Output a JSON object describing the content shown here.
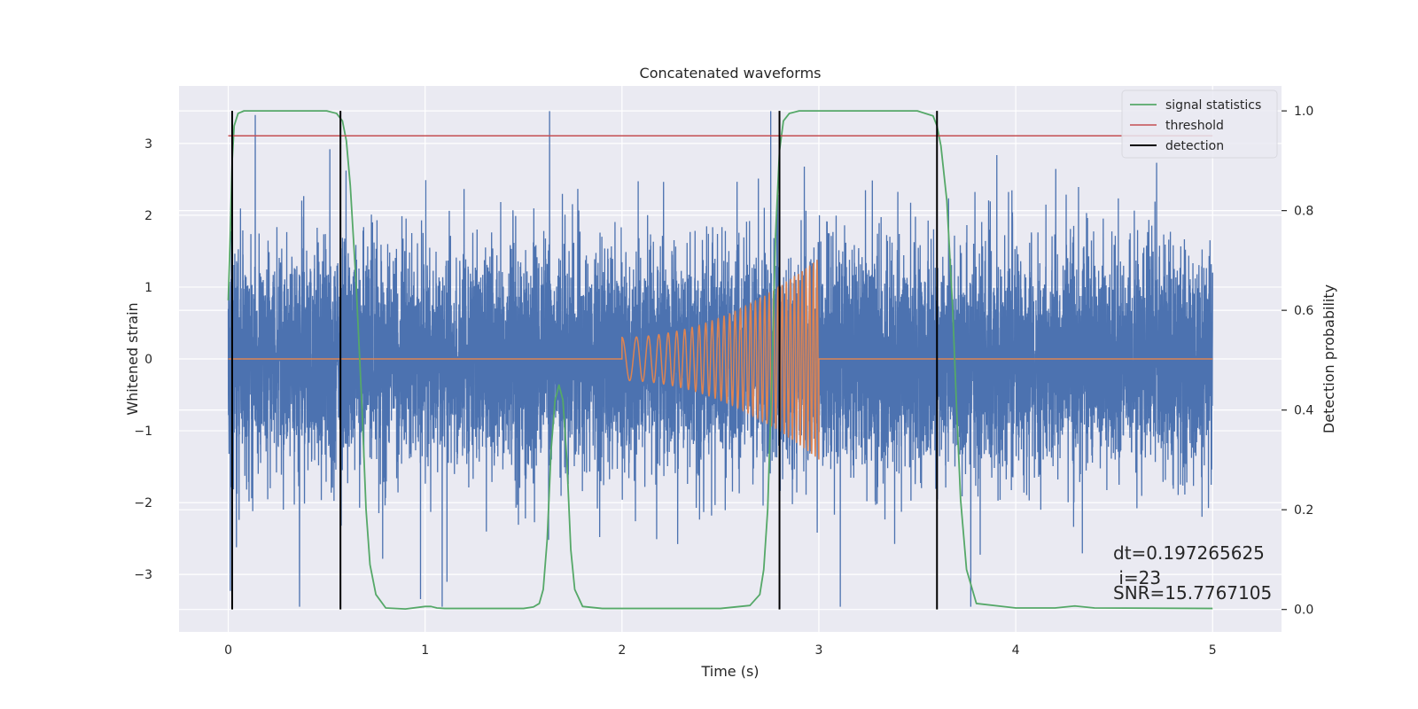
{
  "chart_data": {
    "type": "line",
    "title": "Concatenated waveforms",
    "xlabel": "Time (s)",
    "ylabel": "Whitened strain",
    "y2label": "Detection probability",
    "xlim": [
      -0.25,
      5.35
    ],
    "ylim": [
      -3.8,
      3.8
    ],
    "y2lim": [
      -0.045,
      1.05
    ],
    "xticks": [
      0,
      1,
      2,
      3,
      4,
      5
    ],
    "yticks": [
      -3,
      -2,
      -1,
      0,
      1,
      2,
      3
    ],
    "y2ticks": [
      0.0,
      0.2,
      0.4,
      0.6,
      0.8,
      1.0
    ],
    "grid": true,
    "legend_position": "top-right",
    "colors": {
      "strain": "#4c72b0",
      "template": "#dd8452",
      "signal_statistics": "#55a868",
      "threshold": "#c44e52",
      "detection": "#000000",
      "background": "#eaeaf2",
      "grid": "#ffffff"
    },
    "series": [
      {
        "name": "",
        "kind": "whitened strain noise",
        "axis": "left",
        "x_range": [
          0,
          5
        ],
        "envelope": {
          "dense_band": [
            -1.0,
            1.0
          ],
          "extreme_min": -3.45,
          "extreme_max": 3.45
        }
      },
      {
        "name": "",
        "kind": "injected chirp waveform",
        "axis": "left",
        "x_range": [
          0,
          5
        ],
        "chirp": {
          "start": 2.0,
          "end": 3.0,
          "amp_start": 0.3,
          "amp_end": 1.4,
          "freq_start": 12,
          "freq_end": 55
        },
        "baseline": 0
      },
      {
        "name": "signal statistics",
        "axis": "right",
        "x": [
          0.0,
          0.01,
          0.02,
          0.03,
          0.05,
          0.08,
          0.12,
          0.5,
          0.55,
          0.58,
          0.6,
          0.62,
          0.65,
          0.68,
          0.7,
          0.72,
          0.75,
          0.8,
          0.9,
          1.0,
          1.03,
          1.06,
          1.1,
          1.5,
          1.55,
          1.58,
          1.6,
          1.62,
          1.64,
          1.66,
          1.68,
          1.7,
          1.72,
          1.74,
          1.76,
          1.8,
          1.9,
          2.5,
          2.65,
          2.7,
          2.72,
          2.74,
          2.76,
          2.78,
          2.8,
          2.82,
          2.85,
          2.9,
          3.0,
          3.5,
          3.58,
          3.6,
          3.62,
          3.65,
          3.68,
          3.7,
          3.72,
          3.75,
          3.8,
          4.0,
          4.2,
          4.3,
          4.4,
          5.0
        ],
        "y": [
          0.62,
          0.75,
          0.9,
          0.97,
          0.995,
          1.0,
          1.0,
          1.0,
          0.995,
          0.98,
          0.94,
          0.85,
          0.65,
          0.4,
          0.2,
          0.09,
          0.03,
          0.003,
          0.001,
          0.006,
          0.006,
          0.003,
          0.002,
          0.002,
          0.005,
          0.012,
          0.04,
          0.14,
          0.32,
          0.42,
          0.45,
          0.42,
          0.3,
          0.12,
          0.04,
          0.006,
          0.002,
          0.002,
          0.008,
          0.03,
          0.08,
          0.2,
          0.45,
          0.75,
          0.92,
          0.98,
          0.995,
          1.0,
          1.0,
          1.0,
          0.99,
          0.97,
          0.93,
          0.82,
          0.6,
          0.4,
          0.22,
          0.08,
          0.012,
          0.003,
          0.003,
          0.007,
          0.003,
          0.002
        ]
      },
      {
        "name": "threshold",
        "axis": "right",
        "x": [
          0,
          5
        ],
        "y": [
          0.95,
          0.95
        ]
      },
      {
        "name": "detection",
        "axis": "right",
        "type": "vlines",
        "x": [
          0.02,
          0.57,
          2.8,
          3.6
        ],
        "y_range": [
          0.0,
          1.0
        ]
      }
    ],
    "annotations": [
      "dt=0.197265625",
      " i=23",
      "SNR=15.7767105"
    ]
  }
}
